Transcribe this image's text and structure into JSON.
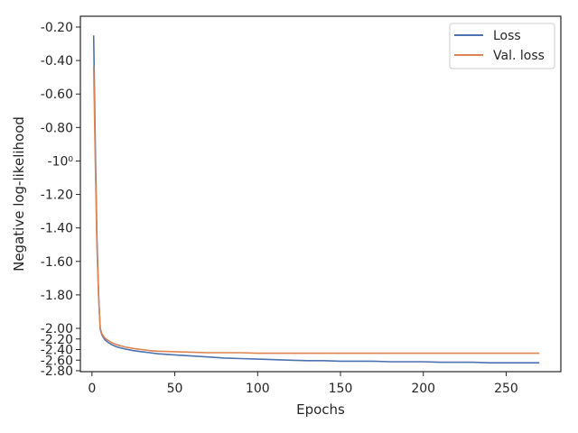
{
  "chart_data": {
    "type": "line",
    "xlabel": "Epochs",
    "ylabel": "Negative log-likelihood",
    "xlim": [
      -7,
      283
    ],
    "x_ticks": [
      0,
      50,
      100,
      150,
      200,
      250
    ],
    "x_tick_labels": [
      "0",
      "50",
      "100",
      "150",
      "200",
      "250"
    ],
    "y_ticks": [
      -0.2,
      -0.4,
      -0.6,
      -0.8,
      -1.0,
      -1.2,
      -1.4,
      -1.6,
      -1.8,
      -2.0,
      -2.2,
      -2.4,
      -2.6,
      -2.8
    ],
    "y_tick_labels": [
      "-0.20",
      "-0.40",
      "-0.60",
      "-0.80",
      "-10⁰",
      "-1.20",
      "-1.40",
      "-1.60",
      "-1.80",
      "-2.00",
      "-2.20",
      "-2.40",
      "-2.60",
      "-2.80"
    ],
    "grid": false,
    "legend_position": "top-right",
    "series": [
      {
        "name": "Loss",
        "color": "#4c72b0",
        "x": [
          1,
          2,
          3,
          4,
          5,
          6,
          7,
          8,
          10,
          12,
          15,
          20,
          25,
          30,
          35,
          40,
          50,
          60,
          70,
          80,
          90,
          100,
          110,
          120,
          130,
          140,
          150,
          160,
          170,
          180,
          190,
          200,
          210,
          220,
          230,
          240,
          250,
          260,
          265,
          270
        ],
        "y": [
          -0.25,
          -0.9,
          -1.45,
          -1.8,
          -2.02,
          -2.12,
          -2.18,
          -2.22,
          -2.27,
          -2.31,
          -2.35,
          -2.39,
          -2.42,
          -2.44,
          -2.46,
          -2.48,
          -2.5,
          -2.52,
          -2.54,
          -2.56,
          -2.57,
          -2.58,
          -2.59,
          -2.6,
          -2.61,
          -2.61,
          -2.62,
          -2.62,
          -2.62,
          -2.63,
          -2.63,
          -2.63,
          -2.64,
          -2.64,
          -2.64,
          -2.65,
          -2.65,
          -2.65,
          -2.65,
          -2.65
        ]
      },
      {
        "name": "Val. loss",
        "color": "#dd8452",
        "x": [
          1,
          2,
          3,
          4,
          5,
          6,
          7,
          8,
          10,
          12,
          15,
          20,
          25,
          30,
          35,
          40,
          50,
          60,
          70,
          80,
          90,
          100,
          110,
          120,
          130,
          140,
          150,
          160,
          170,
          180,
          190,
          200,
          210,
          220,
          230,
          240,
          250,
          260,
          265,
          270
        ],
        "y": [
          -0.43,
          -1.0,
          -1.5,
          -1.82,
          -2.0,
          -2.1,
          -2.15,
          -2.19,
          -2.23,
          -2.27,
          -2.31,
          -2.35,
          -2.38,
          -2.4,
          -2.42,
          -2.43,
          -2.44,
          -2.45,
          -2.46,
          -2.46,
          -2.46,
          -2.47,
          -2.47,
          -2.47,
          -2.47,
          -2.47,
          -2.47,
          -2.47,
          -2.47,
          -2.47,
          -2.47,
          -2.47,
          -2.47,
          -2.47,
          -2.47,
          -2.47,
          -2.47,
          -2.47,
          -2.47,
          -2.47
        ]
      }
    ]
  }
}
